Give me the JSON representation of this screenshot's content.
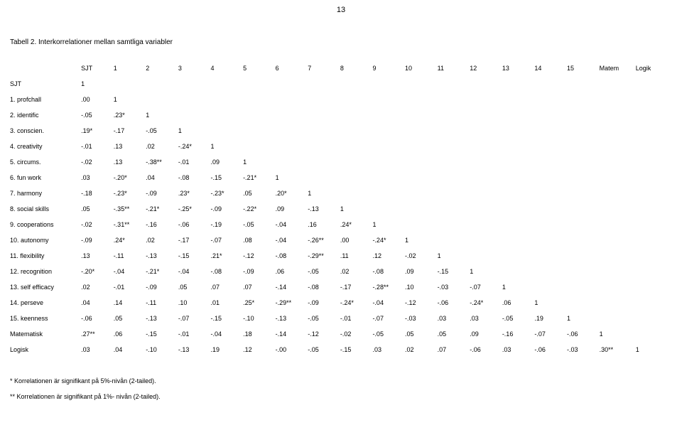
{
  "page_number": "13",
  "title": "Tabell 2. Interkorrelationer mellan samtliga variabler",
  "columns": [
    "SJT",
    "1",
    "2",
    "3",
    "4",
    "5",
    "6",
    "7",
    "8",
    "9",
    "10",
    "11",
    "12",
    "13",
    "14",
    "15",
    "Matem",
    "Logik"
  ],
  "rows": [
    {
      "label": "SJT",
      "cells": [
        "1"
      ]
    },
    {
      "label": "1. profchall",
      "cells": [
        ".00",
        "1"
      ]
    },
    {
      "label": "2. identific",
      "cells": [
        "-.05",
        ".23*",
        "1"
      ]
    },
    {
      "label": "3. conscien.",
      "cells": [
        ".19*",
        "-.17",
        "-.05",
        "1"
      ]
    },
    {
      "label": "4. creativity",
      "cells": [
        "-.01",
        ".13",
        ".02",
        "-.24*",
        "1"
      ]
    },
    {
      "label": "5. circums.",
      "cells": [
        "-.02",
        ".13",
        "-.38**",
        "-.01",
        ".09",
        "1"
      ]
    },
    {
      "label": "6. fun work",
      "cells": [
        ".03",
        "-.20*",
        ".04",
        "-.08",
        "-.15",
        "-.21*",
        "1"
      ]
    },
    {
      "label": "7. harmony",
      "cells": [
        "-.18",
        "-.23*",
        "-.09",
        ".23*",
        "-.23*",
        ".05",
        ".20*",
        "1"
      ]
    },
    {
      "label": "8. social skills",
      "cells": [
        ".05",
        "-.35**",
        "-.21*",
        "-.25*",
        "-.09",
        "-.22*",
        ".09",
        "-.13",
        "1"
      ]
    },
    {
      "label": "9. cooperations",
      "cells": [
        "-.02",
        "-.31**",
        "-.16",
        "-.06",
        "-.19",
        "-.05",
        "-.04",
        ".16",
        ".24*",
        "1"
      ]
    },
    {
      "label": "10. autonomy",
      "cells": [
        "-.09",
        ".24*",
        ".02",
        "-.17",
        "-.07",
        ".08",
        "-.04",
        "-.26**",
        ".00",
        "-.24*",
        "1"
      ]
    },
    {
      "label": "11. flexibility",
      "cells": [
        ".13",
        "-.11",
        "-.13",
        "-.15",
        ".21*",
        "-.12",
        "-.08",
        "-.29**",
        ".11",
        ".12",
        "-.02",
        "1"
      ]
    },
    {
      "label": "12. recognition",
      "cells": [
        "-.20*",
        "-.04",
        "-.21*",
        "-.04",
        "-.08",
        "-.09",
        ".06",
        "-.05",
        ".02",
        "-.08",
        ".09",
        "-.15",
        "1"
      ]
    },
    {
      "label": "13. self efficacy",
      "cells": [
        ".02",
        "-.01",
        "-.09",
        ".05",
        ".07",
        ".07",
        "-.14",
        "-.08",
        "-.17",
        "-.28**",
        ".10",
        "-.03",
        "-.07",
        "1"
      ]
    },
    {
      "label": "14. perseve",
      "cells": [
        ".04",
        ".14",
        "-.11",
        ".10",
        ".01",
        ".25*",
        "-.29**",
        "-.09",
        "-.24*",
        "-.04",
        "-.12",
        "-.06",
        "-.24*",
        ".06",
        "1"
      ]
    },
    {
      "label": "15. keenness",
      "cells": [
        "-.06",
        ".05",
        "-.13",
        "-.07",
        "-.15",
        "-.10",
        "-.13",
        "-.05",
        "-.01",
        "-.07",
        "-.03",
        ".03",
        ".03",
        "-.05",
        ".19",
        "1"
      ]
    },
    {
      "label": "Matematisk",
      "cells": [
        ".27**",
        ".06",
        "-.15",
        "-.01",
        "-.04",
        ".18",
        "-.14",
        "-.12",
        "-.02",
        "-.05",
        ".05",
        ".05",
        ".09",
        "-.16",
        "-.07",
        "-.06",
        "1"
      ]
    },
    {
      "label": "Logisk",
      "cells": [
        ".03",
        ".04",
        "-.10",
        "-.13",
        ".19",
        ".12",
        "-.00",
        "-.05",
        "-.15",
        ".03",
        ".02",
        ".07",
        "-.06",
        ".03",
        "-.06",
        "-.03",
        ".30**",
        "1"
      ]
    }
  ],
  "footnote_1": "*  Korrelationen är signifikant på 5%-nivån (2-tailed).",
  "footnote_2": "** Korrelationen är signifikant på 1%- nivån (2-tailed)."
}
